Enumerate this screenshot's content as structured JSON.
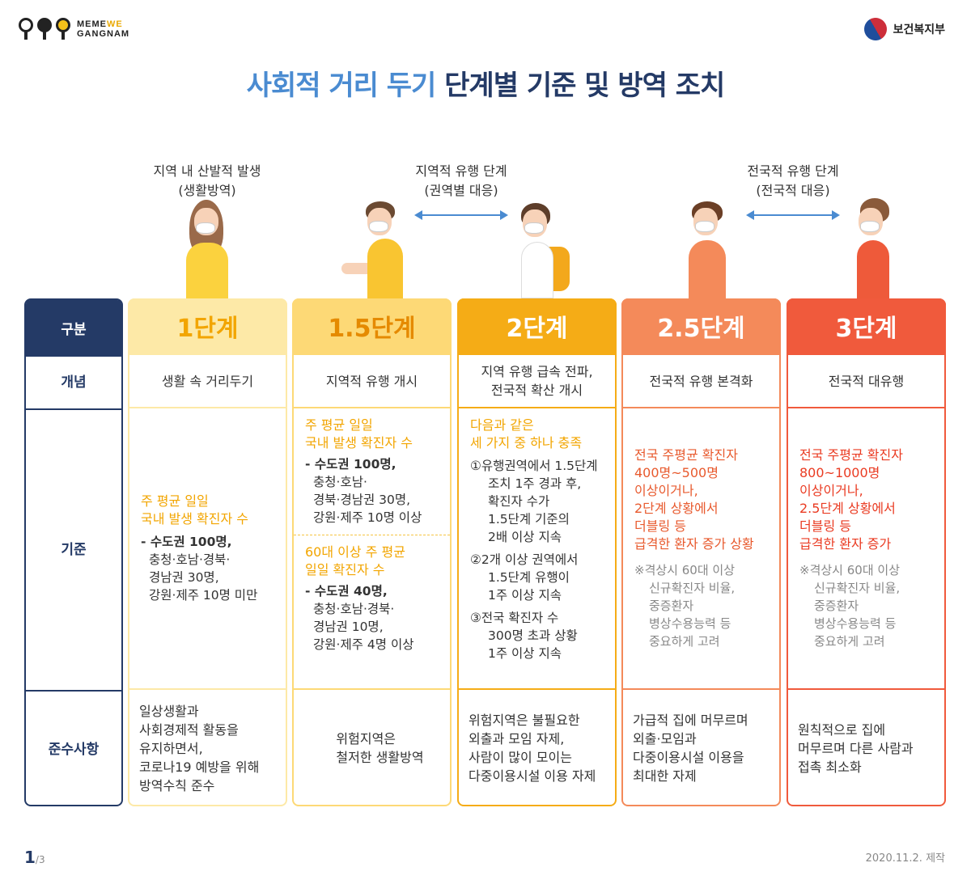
{
  "brand": {
    "logo_line1": "MEME",
    "logo_we": "WE",
    "logo_line2": "GANGNAM",
    "ministry": "보건복지부"
  },
  "title": {
    "part1": "사회적 거리 두기",
    "part2": "단계별 기준 및 방역 조치"
  },
  "phases": [
    {
      "line1": "지역 내 산발적 발생",
      "line2": "(생활방역)"
    },
    {
      "line1": "지역적 유행 단계",
      "line2": "(권역별 대응)"
    },
    {
      "line1": "전국적 유행 단계",
      "line2": "(전국적 대응)"
    }
  ],
  "row_headers": {
    "category": "구분",
    "concept": "개념",
    "criteria": "기준",
    "compliance": "준수사항"
  },
  "stages": [
    {
      "label": "1단계",
      "concept": "생활 속 거리두기",
      "criteria": {
        "highlight": [
          "주 평균 일일",
          "국내 발생 확진자 수"
        ],
        "list": [
          "- 수도권 100명,",
          "충청·호남·경북·",
          "경남권 30명,",
          "강원·제주 10명 미만"
        ]
      },
      "compliance": [
        "일상생활과",
        "사회경제적 활동을",
        "유지하면서,",
        "코로나19 예방을 위해",
        "방역수칙 준수"
      ]
    },
    {
      "label": "1.5단계",
      "concept": "지역적 유행 개시",
      "criteria": {
        "highlight": [
          "주 평균 일일",
          "국내 발생 확진자 수"
        ],
        "list": [
          "- 수도권 100명,",
          "충청·호남·",
          "경북·경남권 30명,",
          "강원·제주 10명 이상"
        ],
        "highlight2": [
          "60대 이상 주 평균",
          "일일 확진자 수"
        ],
        "list2": [
          "- 수도권 40명,",
          "충청·호남·경북·",
          "경남권 10명,",
          "강원·제주 4명 이상"
        ]
      },
      "compliance": [
        "위험지역은",
        "철저한 생활방역"
      ]
    },
    {
      "label": "2단계",
      "concept": [
        "지역 유행 급속 전파,",
        "전국적 확산 개시"
      ],
      "criteria": {
        "highlight": [
          "다음과 같은",
          "세 가지 중 하나 충족"
        ],
        "items": [
          [
            "①유행권역에서 1.5단계",
            "조치 1주 경과 후,",
            "확진자 수가",
            "1.5단계 기준의",
            "2배 이상 지속"
          ],
          [
            "②2개 이상 권역에서",
            "1.5단계 유행이",
            "1주 이상 지속"
          ],
          [
            "③전국 확진자 수",
            "300명 초과 상황",
            "1주 이상 지속"
          ]
        ]
      },
      "compliance": [
        "위험지역은 불필요한",
        "외출과 모임 자제,",
        "사람이 많이 모이는",
        "다중이용시설 이용 자제"
      ]
    },
    {
      "label": "2.5단계",
      "concept": "전국적 유행 본격화",
      "criteria": {
        "highlight": [
          "전국 주평균 확진자",
          "400명~500명",
          "이상이거나,",
          "2단계 상황에서",
          "더블링 등",
          "급격한 환자 증가 상황"
        ],
        "note": [
          "※격상시 60대 이상",
          "신규확진자 비율,",
          "중증환자",
          "병상수용능력 등",
          "중요하게 고려"
        ]
      },
      "compliance": [
        "가급적 집에 머무르며",
        "외출·모임과",
        "다중이용시설 이용을",
        "최대한 자제"
      ]
    },
    {
      "label": "3단계",
      "concept": "전국적 대유행",
      "criteria": {
        "highlight": [
          "전국 주평균 확진자",
          "800~1000명",
          "이상이거나,",
          "2.5단계 상황에서",
          "더블링 등",
          "급격한 환자 증가"
        ],
        "note": [
          "※격상시 60대 이상",
          "신규확진자 비율,",
          "중증환자",
          "병상수용능력 등",
          "중요하게 고려"
        ]
      },
      "compliance": [
        "원칙적으로 집에",
        "머무르며 다른 사람과",
        "접촉 최소화"
      ]
    }
  ],
  "footer": {
    "page": "1",
    "total": "/3",
    "credit": "2020.11.2. 제작"
  }
}
